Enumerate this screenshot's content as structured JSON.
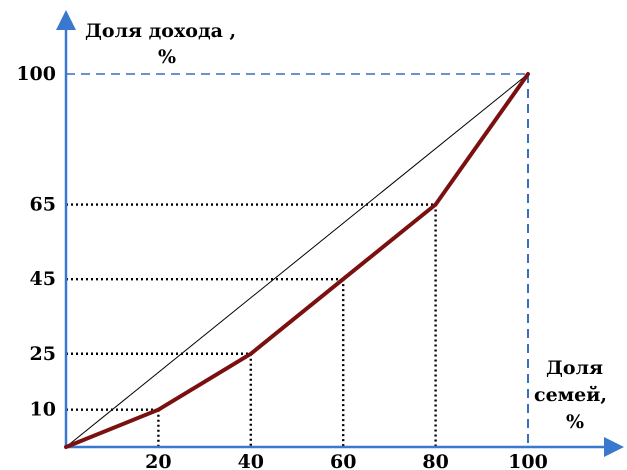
{
  "chart_data": {
    "type": "line",
    "ylabel_lines": [
      "Доля дохода ,",
      "%"
    ],
    "xlabel_lines": [
      "Доля",
      "семей,",
      "%"
    ],
    "x_ticks": [
      "20",
      "40",
      "60",
      "80",
      "100"
    ],
    "y_ticks": [
      "10",
      "25",
      "45",
      "65",
      "100"
    ],
    "xlim": [
      0,
      100
    ],
    "ylim": [
      0,
      100
    ],
    "series": [
      {
        "points": [
          [
            0,
            0
          ],
          [
            20,
            10
          ],
          [
            40,
            25
          ],
          [
            60,
            45
          ],
          [
            80,
            65
          ],
          [
            100,
            100
          ]
        ]
      }
    ],
    "equality_line": [
      [
        0,
        0
      ],
      [
        100,
        100
      ]
    ],
    "colors": {
      "curve": "#7a1010",
      "equality": "#000000",
      "axis": "#3a78d0",
      "guides": "#000000",
      "guides_100": "#3a6fc0"
    }
  }
}
